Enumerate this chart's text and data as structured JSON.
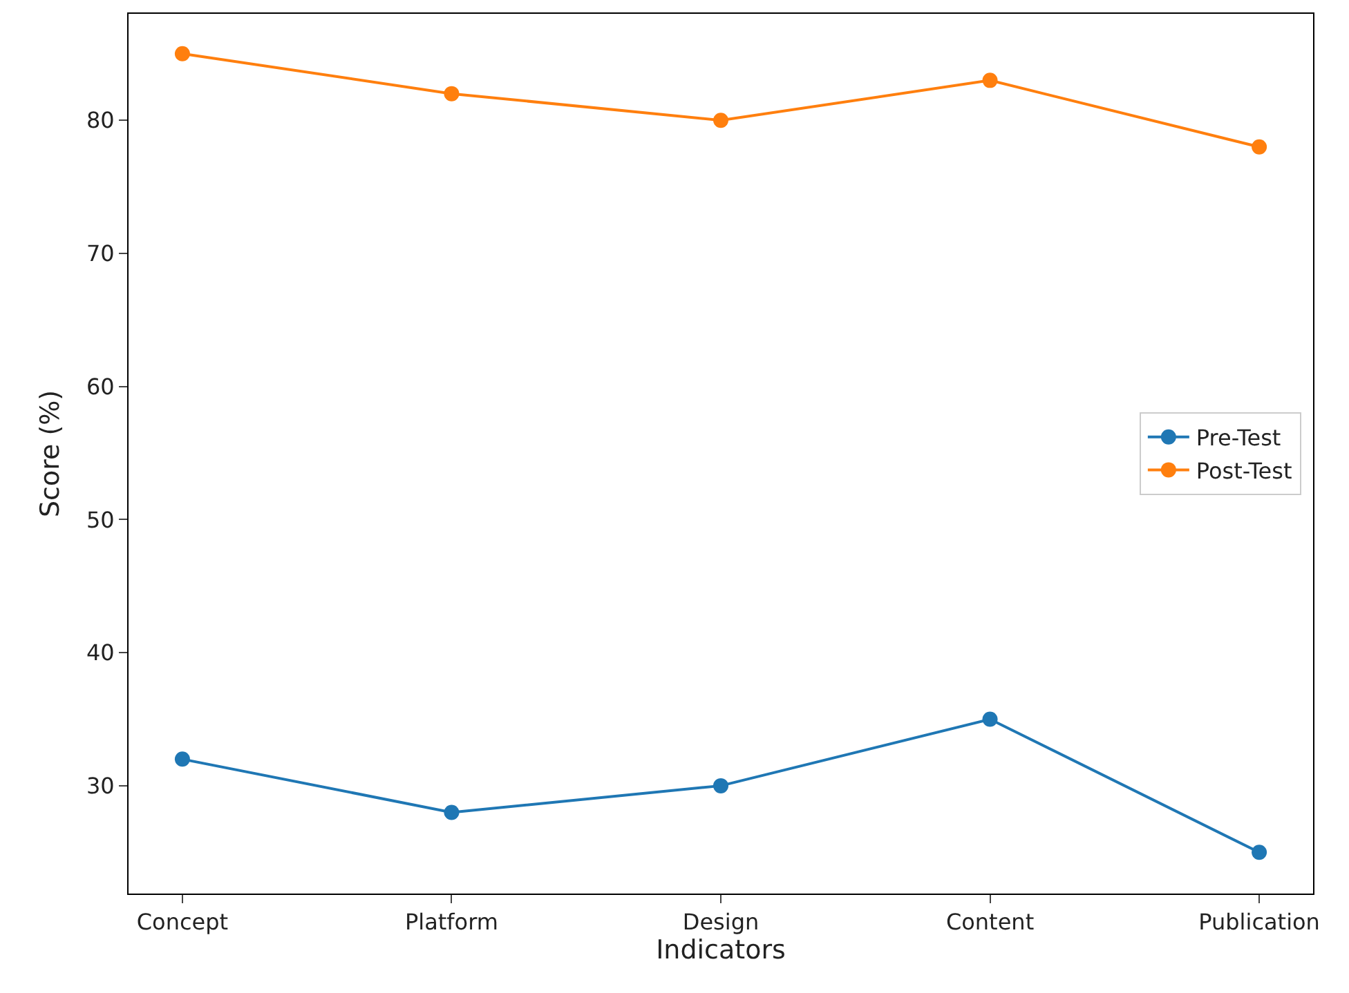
{
  "chart_data": {
    "type": "line",
    "xlabel": "Indicators",
    "ylabel": "Score (%)",
    "categories": [
      "Concept",
      "Platform",
      "Design",
      "Content",
      "Publication"
    ],
    "series": [
      {
        "name": "Pre-Test",
        "color": "#1f77b4",
        "values": [
          32,
          28,
          30,
          35,
          25
        ]
      },
      {
        "name": "Post-Test",
        "color": "#ff7f0e",
        "values": [
          85,
          82,
          80,
          83,
          78
        ]
      }
    ],
    "ylim": [
      21.9,
      88
    ],
    "yticks": [
      30,
      40,
      50,
      60,
      70,
      80
    ],
    "grid": false,
    "legend": "right",
    "marker": "circle",
    "line_style": "solid"
  }
}
